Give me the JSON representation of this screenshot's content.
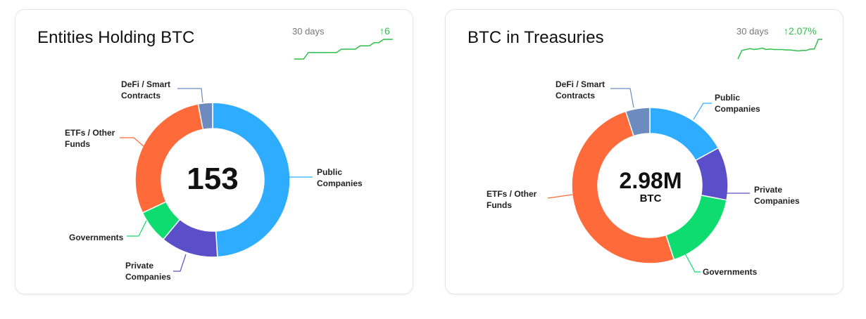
{
  "colors": {
    "public": "#2eacff",
    "private": "#5a4fc8",
    "governments": "#0fdc6e",
    "etfs": "#ff6a3a",
    "defi": "#6c8cbf",
    "trend_up": "#2fbf4a"
  },
  "cards": [
    {
      "title": "Entities Holding BTC",
      "period": "30 days",
      "change": "↑6",
      "center_value": "153",
      "center_unit": ""
    },
    {
      "title": "BTC in Treasuries",
      "period": "30 days",
      "change": "↑2.07%",
      "center_value": "2.98M",
      "center_unit": "BTC"
    }
  ],
  "chart_data": [
    {
      "type": "pie",
      "variant": "donut",
      "categories": [
        "Public Companies",
        "Private Companies",
        "Governments",
        "ETFs / Other Funds",
        "DeFi / Smart Contracts"
      ],
      "values": [
        49,
        12,
        7,
        29,
        3
      ],
      "unit": "% of entities"
    },
    {
      "type": "pie",
      "variant": "donut",
      "categories": [
        "Public Companies",
        "Private Companies",
        "Governments",
        "ETFs / Other Funds",
        "DeFi / Smart Contracts"
      ],
      "values": [
        17,
        11,
        17,
        50,
        5
      ],
      "unit": "% of BTC"
    },
    {
      "type": "line",
      "name": "entities-sparkline",
      "values": [
        0,
        0,
        0,
        2,
        2,
        2,
        2,
        2,
        2,
        2,
        3,
        3,
        3,
        3,
        4,
        4,
        4,
        5,
        5,
        6,
        6,
        6
      ]
    },
    {
      "type": "line",
      "name": "treasuries-sparkline",
      "values": [
        0.0,
        0.9,
        1.0,
        1.1,
        1.0,
        1.05,
        1.15,
        1.0,
        1.05,
        1.0,
        1.0,
        1.0,
        0.95,
        0.95,
        0.9,
        0.85,
        0.9,
        0.9,
        1.05,
        1.05,
        2.07,
        2.07
      ]
    }
  ]
}
